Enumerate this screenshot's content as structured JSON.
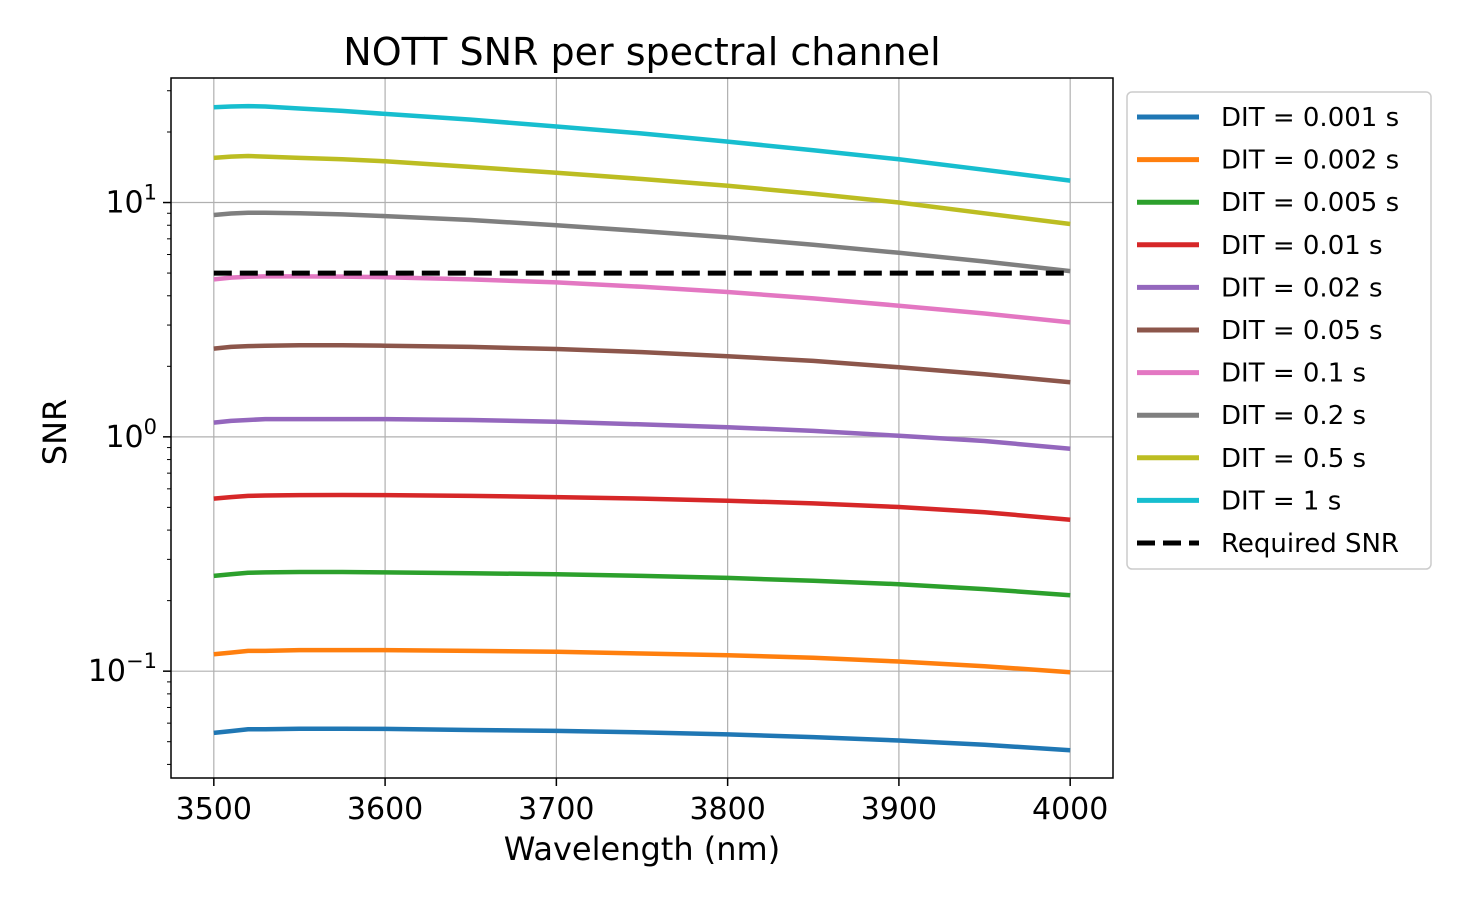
{
  "chart_data": {
    "type": "line",
    "title": "NOTT SNR per spectral channel",
    "xlabel": "Wavelength (nm)",
    "ylabel": "SNR",
    "xlim": [
      3475,
      4025
    ],
    "ylim": [
      0.035,
      34
    ],
    "yscale": "log",
    "grid": true,
    "legend_position": "outside-right-top",
    "x_ticks": [
      3500,
      3600,
      3700,
      3800,
      3900,
      4000
    ],
    "y_ticks": [
      {
        "value": 0.1,
        "base": "10",
        "exp": "−1"
      },
      {
        "value": 1,
        "base": "10",
        "exp": "0"
      },
      {
        "value": 10,
        "base": "10",
        "exp": "1"
      }
    ],
    "x": [
      3500,
      3510,
      3520,
      3530,
      3550,
      3575,
      3600,
      3650,
      3700,
      3750,
      3800,
      3850,
      3900,
      3950,
      4000
    ],
    "series": [
      {
        "name": "DIT = 0.001 s",
        "color": "#1f77b4",
        "style": "solid",
        "values": [
          0.0545,
          0.0555,
          0.0565,
          0.0565,
          0.0568,
          0.0568,
          0.0567,
          0.0561,
          0.0556,
          0.0548,
          0.0537,
          0.0523,
          0.0506,
          0.0485,
          0.046
        ]
      },
      {
        "name": "DIT = 0.002 s",
        "color": "#ff7f0e",
        "style": "solid",
        "values": [
          0.118,
          0.12,
          0.122,
          0.122,
          0.123,
          0.123,
          0.123,
          0.122,
          0.121,
          0.119,
          0.117,
          0.114,
          0.11,
          0.105,
          0.099
        ]
      },
      {
        "name": "DIT = 0.005 s",
        "color": "#2ca02c",
        "style": "solid",
        "values": [
          0.255,
          0.259,
          0.263,
          0.264,
          0.265,
          0.265,
          0.264,
          0.262,
          0.259,
          0.255,
          0.25,
          0.243,
          0.235,
          0.224,
          0.211
        ]
      },
      {
        "name": "DIT = 0.01 s",
        "color": "#d62728",
        "style": "solid",
        "values": [
          0.545,
          0.553,
          0.56,
          0.562,
          0.564,
          0.565,
          0.564,
          0.56,
          0.553,
          0.545,
          0.534,
          0.52,
          0.502,
          0.477,
          0.443
        ]
      },
      {
        "name": "DIT = 0.02 s",
        "color": "#9467bd",
        "style": "solid",
        "values": [
          1.15,
          1.17,
          1.18,
          1.19,
          1.19,
          1.19,
          1.19,
          1.18,
          1.16,
          1.13,
          1.1,
          1.06,
          1.01,
          0.96,
          0.89
        ]
      },
      {
        "name": "DIT = 0.05 s",
        "color": "#8c564b",
        "style": "solid",
        "values": [
          2.38,
          2.42,
          2.44,
          2.45,
          2.46,
          2.46,
          2.45,
          2.42,
          2.37,
          2.3,
          2.21,
          2.11,
          1.98,
          1.85,
          1.71
        ]
      },
      {
        "name": "DIT = 0.1 s",
        "color": "#e377c2",
        "style": "solid",
        "values": [
          4.7,
          4.78,
          4.82,
          4.84,
          4.84,
          4.83,
          4.8,
          4.7,
          4.56,
          4.37,
          4.15,
          3.9,
          3.63,
          3.36,
          3.08
        ]
      },
      {
        "name": "DIT = 0.2 s",
        "color": "#7f7f7f",
        "style": "solid",
        "values": [
          8.85,
          8.98,
          9.05,
          9.05,
          9.0,
          8.9,
          8.75,
          8.42,
          8.0,
          7.55,
          7.1,
          6.6,
          6.1,
          5.6,
          5.1
        ]
      },
      {
        "name": "DIT = 0.5 s",
        "color": "#bcbd22",
        "style": "solid",
        "values": [
          15.5,
          15.7,
          15.8,
          15.7,
          15.5,
          15.3,
          15.0,
          14.2,
          13.4,
          12.6,
          11.8,
          10.9,
          10.0,
          9.0,
          8.1
        ]
      },
      {
        "name": "DIT = 1 s",
        "color": "#17becf",
        "style": "solid",
        "values": [
          25.5,
          25.7,
          25.8,
          25.7,
          25.2,
          24.6,
          23.9,
          22.6,
          21.1,
          19.7,
          18.2,
          16.7,
          15.3,
          13.8,
          12.4
        ]
      },
      {
        "name": "Required SNR",
        "color": "#000000",
        "style": "dashed",
        "values": [
          5,
          5,
          5,
          5,
          5,
          5,
          5,
          5,
          5,
          5,
          5,
          5,
          5,
          5,
          5
        ]
      }
    ]
  }
}
